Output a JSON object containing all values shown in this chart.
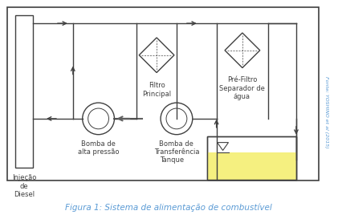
{
  "title": "Figura 1: Sistema de alimentação de combustível",
  "source_text": "Fonte: YOSHINO et al (2015)",
  "labels": {
    "injecao": "Injeção\nde\nDiesel",
    "bomba_alta": "Bomba de\nalta pressão",
    "filtro_principal": "Filtro\nPrincipal",
    "bomba_transf": "Bomba de\nTransferência",
    "pre_filtro": "Pré-Filtro\nSeparador de\nágua",
    "tanque": "Tanque"
  },
  "background_color": "#ffffff",
  "tank_fill_color": "#f5f080",
  "box_color": "#404040",
  "title_color": "#5b9bd5",
  "source_color": "#5b9bd5"
}
